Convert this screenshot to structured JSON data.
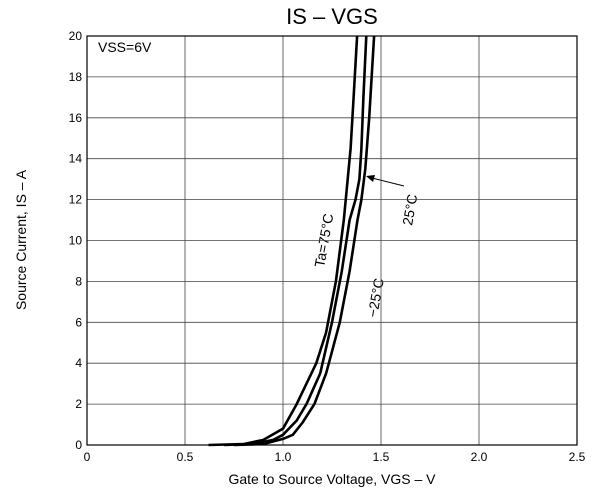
{
  "chart_data": {
    "type": "line",
    "title": "IS – VGS",
    "x_label": "Gate to Source Voltage, VGS – V",
    "y_label": "Source Current, IS – A",
    "xlim": [
      0,
      2.5
    ],
    "xticks": [
      0,
      0.5,
      {
        "value": 1,
        "label": "1.0"
      },
      1.5,
      {
        "value": 2,
        "label": "2.0"
      },
      2.5
    ],
    "ylim": [
      0,
      20
    ],
    "yticks": [
      0,
      2,
      4,
      6,
      8,
      10,
      12,
      14,
      16,
      18,
      20
    ],
    "grid": true,
    "annotations": [
      "VSS=6V",
      "Ta=75°C",
      "25°C",
      "−25°C"
    ],
    "series": [
      {
        "name": "Ta=75°C",
        "color": "#000000",
        "x": [
          0.62,
          0.8,
          0.9,
          1.0,
          1.07,
          1.12,
          1.17,
          1.22,
          1.27,
          1.31,
          1.33,
          1.345,
          1.36,
          1.378
        ],
        "values": [
          0,
          0.05,
          0.25,
          0.8,
          2,
          3,
          4,
          5.5,
          8,
          11,
          13,
          14.5,
          17,
          20
        ]
      },
      {
        "name": "25°C",
        "color": "#000000",
        "x": [
          0.7,
          0.85,
          0.95,
          1.0,
          1.07,
          1.12,
          1.19,
          1.25,
          1.3,
          1.34,
          1.37,
          1.39,
          1.4,
          1.41,
          1.425
        ],
        "values": [
          0,
          0.05,
          0.25,
          0.5,
          1.2,
          2,
          3.5,
          6,
          8.5,
          11,
          12,
          13,
          14.5,
          17,
          20
        ]
      },
      {
        "name": "−25°C",
        "color": "#000000",
        "x": [
          0.75,
          0.9,
          1.0,
          1.05,
          1.1,
          1.16,
          1.22,
          1.29,
          1.34,
          1.38,
          1.4,
          1.42,
          1.44,
          1.465
        ],
        "values": [
          0,
          0.05,
          0.3,
          0.5,
          1.1,
          2,
          3.5,
          6,
          8.5,
          11,
          12,
          13.5,
          16,
          20
        ]
      }
    ]
  }
}
